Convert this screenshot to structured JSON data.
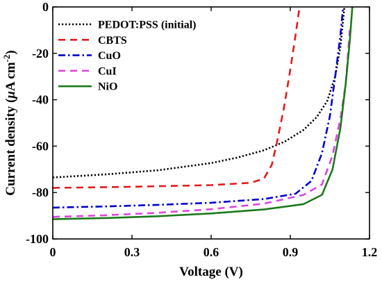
{
  "chart_data": {
    "type": "line",
    "xlabel": "Voltage (V)",
    "ylabel_main": "Current density (",
    "ylabel_mu": "μ",
    "ylabel_unit": "A cm",
    "ylabel_exp": "-2",
    "ylabel_close": ")",
    "xlim": [
      0,
      1.2
    ],
    "ylim": [
      -100,
      0
    ],
    "x_ticks": [
      "0",
      "0.3",
      "0.6",
      "0.9",
      "1.2"
    ],
    "x_tick_values": [
      0,
      0.3,
      0.6,
      0.9,
      1.2
    ],
    "y_ticks": [
      "0",
      "-20",
      "-40",
      "-60",
      "-80",
      "-100"
    ],
    "y_tick_values": [
      0,
      -20,
      -40,
      -60,
      -80,
      -100
    ],
    "grid": false,
    "legend_position": "top-left",
    "series": [
      {
        "name": "PEDOT:PSS (initial)",
        "color": "#000000",
        "style": "dotted",
        "points": [
          [
            0,
            -73.5
          ],
          [
            0.2,
            -72.2
          ],
          [
            0.4,
            -70.4
          ],
          [
            0.6,
            -67.3
          ],
          [
            0.7,
            -64.9
          ],
          [
            0.8,
            -61.8
          ],
          [
            0.88,
            -58.0
          ],
          [
            0.95,
            -53.0
          ],
          [
            1.0,
            -47.5
          ],
          [
            1.04,
            -40.5
          ],
          [
            1.07,
            -30.0
          ],
          [
            1.09,
            -17.0
          ],
          [
            1.105,
            0
          ]
        ]
      },
      {
        "name": "CBTS",
        "color": "#e31a1c",
        "style": "dashed",
        "points": [
          [
            0,
            -78.0
          ],
          [
            0.3,
            -77.5
          ],
          [
            0.6,
            -76.8
          ],
          [
            0.75,
            -75.8
          ],
          [
            0.8,
            -74.0
          ],
          [
            0.83,
            -68.0
          ],
          [
            0.85,
            -58.0
          ],
          [
            0.875,
            -44.0
          ],
          [
            0.9,
            -27.0
          ],
          [
            0.92,
            -12.0
          ],
          [
            0.935,
            0
          ]
        ]
      },
      {
        "name": "CuO",
        "color": "#0000cc",
        "style": "dashdot",
        "points": [
          [
            0,
            -86.5
          ],
          [
            0.2,
            -86.0
          ],
          [
            0.4,
            -85.3
          ],
          [
            0.6,
            -84.4
          ],
          [
            0.8,
            -82.8
          ],
          [
            0.92,
            -80.5
          ],
          [
            0.98,
            -75.0
          ],
          [
            1.02,
            -63.0
          ],
          [
            1.05,
            -47.0
          ],
          [
            1.07,
            -30.0
          ],
          [
            1.09,
            -12.0
          ],
          [
            1.1,
            0
          ]
        ]
      },
      {
        "name": "CuI",
        "color": "#dd44dd",
        "style": "dashed",
        "points": [
          [
            0,
            -90.5
          ],
          [
            0.2,
            -89.8
          ],
          [
            0.4,
            -88.7
          ],
          [
            0.6,
            -87.2
          ],
          [
            0.8,
            -84.8
          ],
          [
            0.95,
            -81.0
          ],
          [
            1.02,
            -76.5
          ],
          [
            1.06,
            -64.0
          ],
          [
            1.09,
            -48.0
          ],
          [
            1.11,
            -33.0
          ],
          [
            1.12,
            -18.0
          ],
          [
            1.125,
            -10.0
          ]
        ]
      },
      {
        "name": "NiO",
        "color": "#1a7a1a",
        "style": "solid",
        "points": [
          [
            0,
            -91.5
          ],
          [
            0.2,
            -91.0
          ],
          [
            0.4,
            -90.2
          ],
          [
            0.6,
            -89.0
          ],
          [
            0.8,
            -87.3
          ],
          [
            0.95,
            -85.0
          ],
          [
            1.02,
            -81.0
          ],
          [
            1.06,
            -70.0
          ],
          [
            1.09,
            -52.0
          ],
          [
            1.11,
            -33.0
          ],
          [
            1.125,
            -15.0
          ],
          [
            1.135,
            0
          ]
        ]
      }
    ]
  }
}
